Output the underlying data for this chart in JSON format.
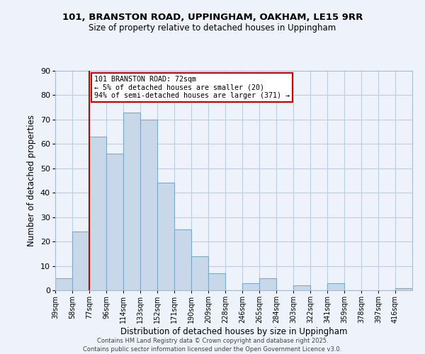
{
  "title": "101, BRANSTON ROAD, UPPINGHAM, OAKHAM, LE15 9RR",
  "subtitle": "Size of property relative to detached houses in Uppingham",
  "xlabel": "Distribution of detached houses by size in Uppingham",
  "ylabel": "Number of detached properties",
  "bin_labels": [
    "39sqm",
    "58sqm",
    "77sqm",
    "96sqm",
    "114sqm",
    "133sqm",
    "152sqm",
    "171sqm",
    "190sqm",
    "209sqm",
    "228sqm",
    "246sqm",
    "265sqm",
    "284sqm",
    "303sqm",
    "322sqm",
    "341sqm",
    "359sqm",
    "378sqm",
    "397sqm",
    "416sqm"
  ],
  "bar_heights": [
    5,
    24,
    63,
    56,
    73,
    70,
    44,
    25,
    14,
    7,
    0,
    3,
    5,
    0,
    2,
    0,
    3,
    0,
    0,
    0,
    1
  ],
  "bar_color": "#c8d8e8",
  "bar_edge_color": "#7aaac8",
  "background_color": "#eef2fa",
  "grid_color": "#c0cce0",
  "marker_line_color": "#cc0000",
  "annotation_title": "101 BRANSTON ROAD: 72sqm",
  "annotation_line1": "← 5% of detached houses are smaller (20)",
  "annotation_line2": "94% of semi-detached houses are larger (371) →",
  "annotation_box_color": "#ffffff",
  "annotation_box_edge": "#cc0000",
  "ylim": [
    0,
    90
  ],
  "yticks": [
    0,
    10,
    20,
    30,
    40,
    50,
    60,
    70,
    80,
    90
  ],
  "footer_line1": "Contains HM Land Registry data © Crown copyright and database right 2025.",
  "footer_line2": "Contains public sector information licensed under the Open Government Licence v3.0."
}
